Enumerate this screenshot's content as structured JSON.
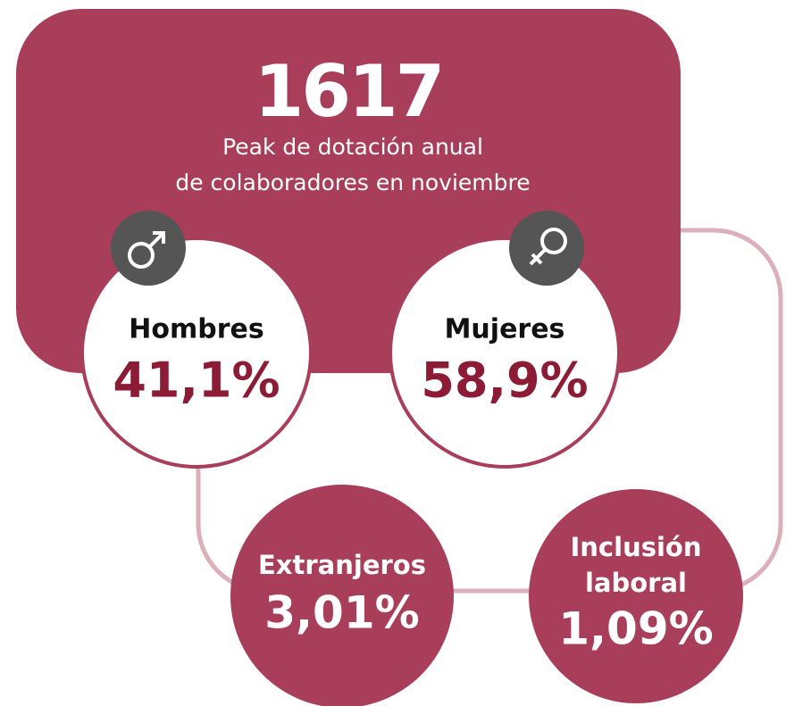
{
  "headline": {
    "number": "1617",
    "subtitle_lines": [
      "Peak de dotación anual",
      "de colaboradores en noviembre"
    ]
  },
  "stats": [
    {
      "label": "Hombres",
      "value": "41,1%"
    },
    {
      "label": "Mujeres",
      "value": "58,9%"
    },
    {
      "label": "Extranjeros",
      "value": "3,01%"
    },
    {
      "label_lines": [
        "Inclusión",
        "laboral"
      ],
      "value": "1,09%"
    }
  ]
}
